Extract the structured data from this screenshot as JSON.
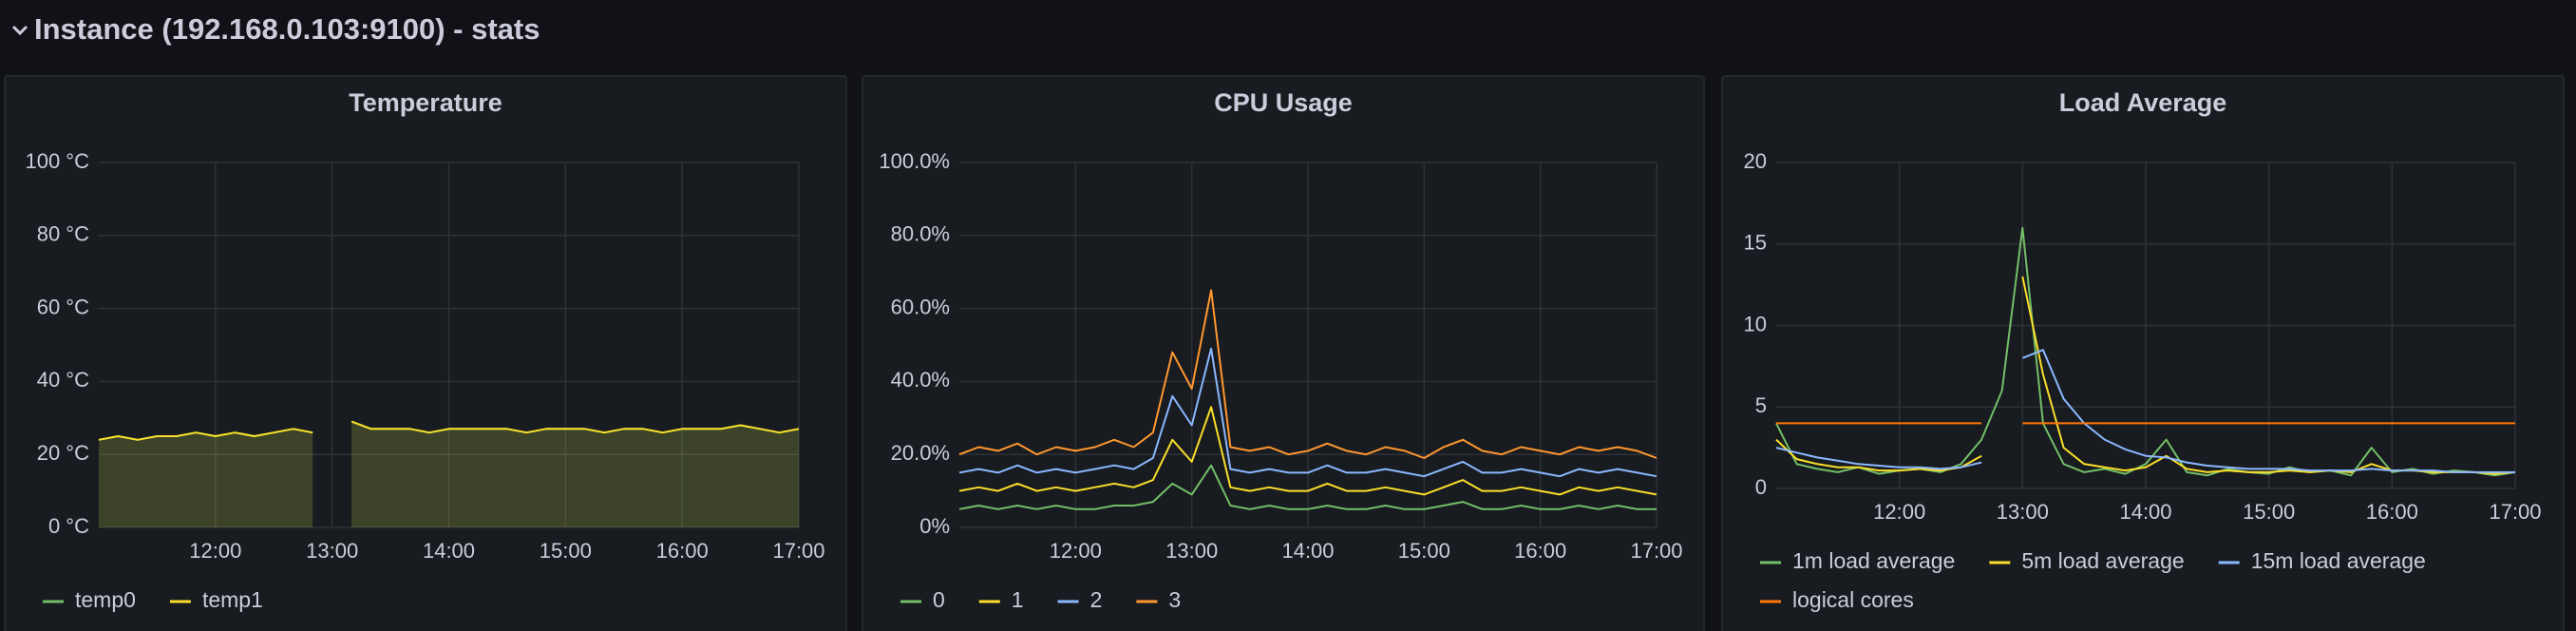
{
  "header": {
    "title": "Instance (192.168.0.103:9100) - stats"
  },
  "chart_data": [
    {
      "type": "line",
      "title": "Temperature",
      "fill": true,
      "grid": true,
      "x": [
        "11:00",
        "11:10",
        "11:20",
        "11:30",
        "11:40",
        "11:50",
        "12:00",
        "12:10",
        "12:20",
        "12:30",
        "12:40",
        "12:50",
        "13:00",
        "13:10",
        "13:20",
        "13:30",
        "13:40",
        "13:50",
        "14:00",
        "14:10",
        "14:20",
        "14:30",
        "14:40",
        "14:50",
        "15:00",
        "15:10",
        "15:20",
        "15:30",
        "15:40",
        "15:50",
        "16:00",
        "16:10",
        "16:20",
        "16:30",
        "16:40",
        "16:50",
        "17:00"
      ],
      "xlim": [
        "11:00",
        "17:00"
      ],
      "xticks": [
        "12:00",
        "13:00",
        "14:00",
        "15:00",
        "16:00",
        "17:00"
      ],
      "ylim": [
        0,
        100
      ],
      "yticks": [
        {
          "value": 0,
          "label": "0 °C"
        },
        {
          "value": 20,
          "label": "20 °C"
        },
        {
          "value": 40,
          "label": "40 °C"
        },
        {
          "value": 60,
          "label": "60 °C"
        },
        {
          "value": 80,
          "label": "80 °C"
        },
        {
          "value": 100,
          "label": "100 °C"
        }
      ],
      "series": [
        {
          "name": "temp0",
          "color": "#73bf69",
          "values": [
            24,
            25,
            24,
            25,
            25,
            26,
            25,
            26,
            25,
            26,
            27,
            26,
            null,
            29,
            27,
            27,
            27,
            26,
            27,
            27,
            27,
            27,
            26,
            27,
            27,
            27,
            26,
            27,
            27,
            26,
            27,
            27,
            27,
            28,
            27,
            26,
            27
          ]
        },
        {
          "name": "temp1",
          "color": "#fade2a",
          "values": [
            24,
            25,
            24,
            25,
            25,
            26,
            25,
            26,
            25,
            26,
            27,
            26,
            null,
            29,
            27,
            27,
            27,
            26,
            27,
            27,
            27,
            27,
            26,
            27,
            27,
            27,
            26,
            27,
            27,
            26,
            27,
            27,
            27,
            28,
            27,
            26,
            27
          ]
        }
      ]
    },
    {
      "type": "line",
      "title": "CPU Usage",
      "fill": false,
      "grid": true,
      "x": [
        "11:00",
        "11:10",
        "11:20",
        "11:30",
        "11:40",
        "11:50",
        "12:00",
        "12:10",
        "12:20",
        "12:30",
        "12:40",
        "12:50",
        "13:00",
        "13:10",
        "13:20",
        "13:30",
        "13:40",
        "13:50",
        "14:00",
        "14:10",
        "14:20",
        "14:30",
        "14:40",
        "14:50",
        "15:00",
        "15:10",
        "15:20",
        "15:30",
        "15:40",
        "15:50",
        "16:00",
        "16:10",
        "16:20",
        "16:30",
        "16:40",
        "16:50",
        "17:00"
      ],
      "xlim": [
        "11:00",
        "17:00"
      ],
      "xticks": [
        "12:00",
        "13:00",
        "14:00",
        "15:00",
        "16:00",
        "17:00"
      ],
      "ylim": [
        0,
        100
      ],
      "yticks": [
        {
          "value": 0,
          "label": "0%"
        },
        {
          "value": 20,
          "label": "20.0%"
        },
        {
          "value": 40,
          "label": "40.0%"
        },
        {
          "value": 60,
          "label": "60.0%"
        },
        {
          "value": 80,
          "label": "80.0%"
        },
        {
          "value": 100,
          "label": "100.0%"
        }
      ],
      "series": [
        {
          "name": "0",
          "color": "#73bf69",
          "values": [
            5,
            6,
            5,
            6,
            5,
            6,
            5,
            5,
            6,
            6,
            7,
            12,
            9,
            17,
            6,
            5,
            6,
            5,
            5,
            6,
            5,
            5,
            6,
            5,
            5,
            6,
            7,
            5,
            5,
            6,
            5,
            5,
            6,
            5,
            6,
            5,
            5
          ]
        },
        {
          "name": "1",
          "color": "#fade2a",
          "values": [
            10,
            11,
            10,
            12,
            10,
            11,
            10,
            11,
            12,
            11,
            13,
            24,
            18,
            33,
            11,
            10,
            11,
            10,
            10,
            12,
            10,
            10,
            11,
            10,
            9,
            11,
            13,
            10,
            10,
            11,
            10,
            9,
            11,
            10,
            11,
            10,
            9
          ]
        },
        {
          "name": "2",
          "color": "#8ab8ff",
          "values": [
            15,
            16,
            15,
            17,
            15,
            16,
            15,
            16,
            17,
            16,
            19,
            36,
            28,
            49,
            16,
            15,
            16,
            15,
            15,
            17,
            15,
            15,
            16,
            15,
            14,
            16,
            18,
            15,
            15,
            16,
            15,
            14,
            16,
            15,
            16,
            15,
            14
          ]
        },
        {
          "name": "3",
          "color": "#ff9830",
          "values": [
            20,
            22,
            21,
            23,
            20,
            22,
            21,
            22,
            24,
            22,
            26,
            48,
            38,
            65,
            22,
            21,
            22,
            20,
            21,
            23,
            21,
            20,
            22,
            21,
            19,
            22,
            24,
            21,
            20,
            22,
            21,
            20,
            22,
            21,
            22,
            21,
            19
          ]
        }
      ]
    },
    {
      "type": "line",
      "title": "Load Average",
      "fill": false,
      "grid": true,
      "x": [
        "11:00",
        "11:10",
        "11:20",
        "11:30",
        "11:40",
        "11:50",
        "12:00",
        "12:10",
        "12:20",
        "12:30",
        "12:40",
        "12:50",
        "13:00",
        "13:10",
        "13:20",
        "13:30",
        "13:40",
        "13:50",
        "14:00",
        "14:10",
        "14:20",
        "14:30",
        "14:40",
        "14:50",
        "15:00",
        "15:10",
        "15:20",
        "15:30",
        "15:40",
        "15:50",
        "16:00",
        "16:10",
        "16:20",
        "16:30",
        "16:40",
        "16:50",
        "17:00"
      ],
      "xlim": [
        "11:00",
        "17:00"
      ],
      "xticks": [
        "12:00",
        "13:00",
        "14:00",
        "15:00",
        "16:00",
        "17:00"
      ],
      "ylim": [
        0,
        20
      ],
      "yticks": [
        0,
        5,
        10,
        15,
        20
      ],
      "series": [
        {
          "name": "1m load average",
          "color": "#73bf69",
          "values": [
            4,
            1.5,
            1.2,
            1,
            1.3,
            0.9,
            1.1,
            1.2,
            1,
            1.5,
            3,
            6,
            16,
            4,
            1.5,
            1,
            1.2,
            0.9,
            1.5,
            3,
            1,
            0.8,
            1.2,
            1,
            0.9,
            1.3,
            1,
            1.1,
            0.8,
            2.5,
            1,
            1.2,
            0.9,
            1.1,
            1,
            0.8,
            1
          ]
        },
        {
          "name": "5m load average",
          "color": "#fade2a",
          "values": [
            3,
            1.8,
            1.5,
            1.3,
            1.3,
            1.1,
            1.1,
            1.2,
            1.1,
            1.3,
            2,
            null,
            13,
            7,
            2.5,
            1.5,
            1.3,
            1.1,
            1.3,
            2,
            1.2,
            1,
            1.1,
            1,
            1,
            1.1,
            1,
            1.1,
            1,
            1.5,
            1.1,
            1.1,
            1,
            1,
            1,
            0.9,
            1
          ]
        },
        {
          "name": "15m load average",
          "color": "#8ab8ff",
          "values": [
            2.5,
            2.2,
            1.9,
            1.7,
            1.5,
            1.4,
            1.3,
            1.3,
            1.2,
            1.3,
            1.6,
            null,
            8,
            8.5,
            5.5,
            4,
            3,
            2.4,
            2,
            1.9,
            1.6,
            1.4,
            1.3,
            1.2,
            1.2,
            1.2,
            1.1,
            1.1,
            1.1,
            1.2,
            1.1,
            1.1,
            1.1,
            1,
            1,
            1,
            1
          ]
        },
        {
          "name": "logical cores",
          "color": "#ff780a",
          "values": [
            4,
            4,
            4,
            4,
            4,
            4,
            4,
            4,
            4,
            4,
            4,
            null,
            4,
            4,
            4,
            4,
            4,
            4,
            4,
            4,
            4,
            4,
            4,
            4,
            4,
            4,
            4,
            4,
            4,
            4,
            4,
            4,
            4,
            4,
            4,
            4,
            4
          ]
        }
      ]
    }
  ]
}
